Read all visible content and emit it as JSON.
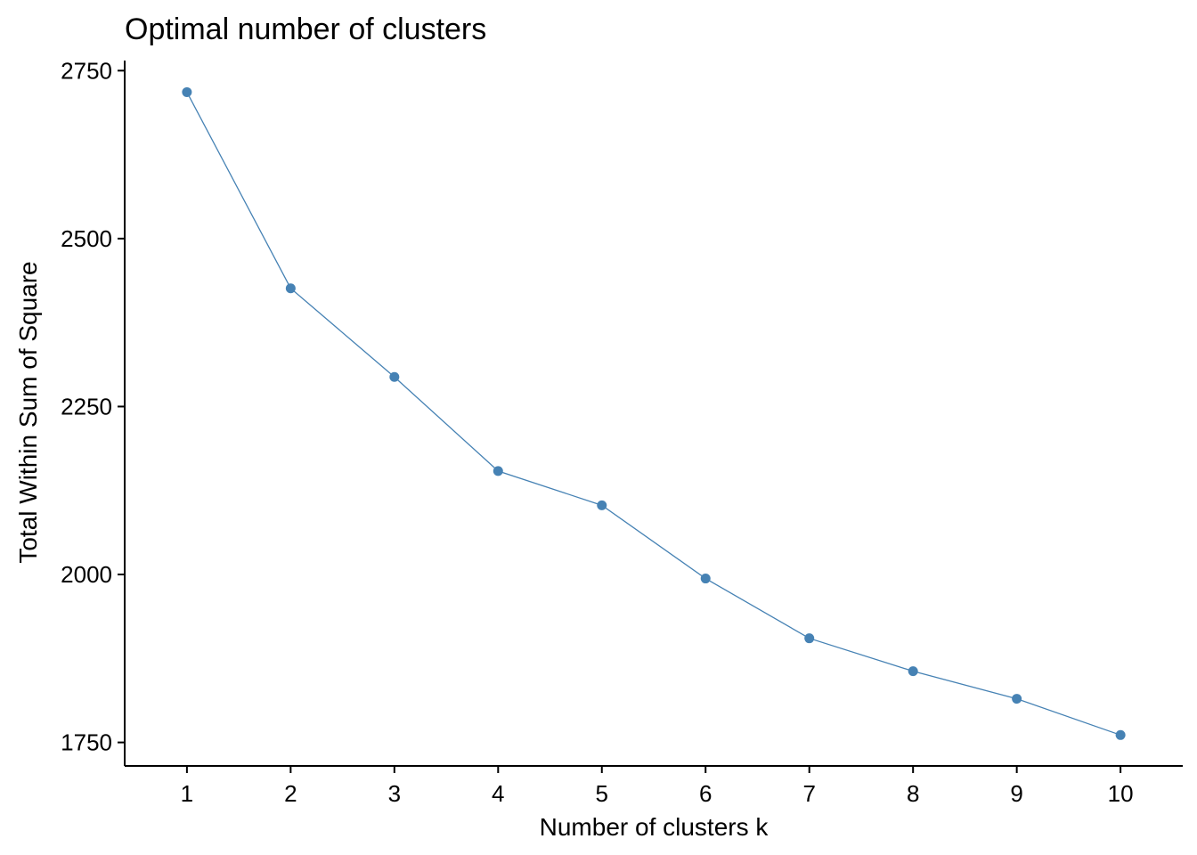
{
  "chart_data": {
    "type": "line",
    "title": "Optimal number of clusters",
    "xlabel": "Number of clusters k",
    "ylabel": "Total Within Sum of Square",
    "x": [
      1,
      2,
      3,
      4,
      5,
      6,
      7,
      8,
      9,
      10
    ],
    "y": [
      2718,
      2426,
      2294,
      2154,
      2103,
      1994,
      1905,
      1856,
      1815,
      1761
    ],
    "xlim": [
      0.4,
      10.6
    ],
    "ylim": [
      1715,
      2765
    ],
    "yticks": [
      1750,
      2000,
      2250,
      2500,
      2750
    ],
    "xticks": [
      1,
      2,
      3,
      4,
      5,
      6,
      7,
      8,
      9,
      10
    ],
    "grid": false,
    "legend": "none",
    "series_color": "#4682B4"
  }
}
